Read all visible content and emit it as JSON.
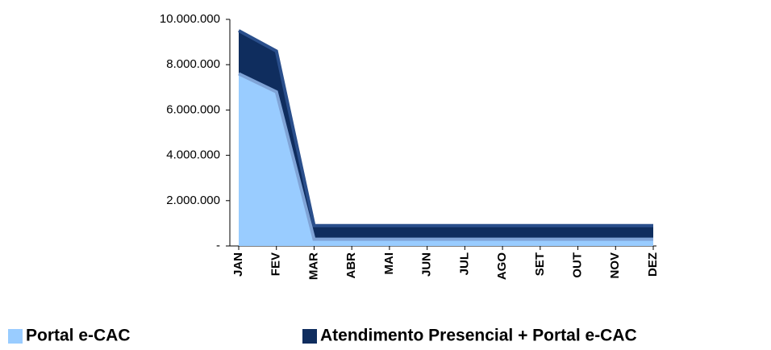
{
  "chart_data": {
    "type": "area",
    "categories": [
      "JAN",
      "FEV",
      "MAR",
      "ABR",
      "MAI",
      "JUN",
      "JUL",
      "AGO",
      "SET",
      "OUT",
      "NOV",
      "DEZ"
    ],
    "series": [
      {
        "name": "Atendimento Presencial + Portal e-CAC",
        "color": "#0f2d5e",
        "values": [
          9500000,
          8600000,
          900000,
          900000,
          900000,
          900000,
          900000,
          900000,
          900000,
          900000,
          900000,
          900000
        ]
      },
      {
        "name": "Portal e-CAC",
        "color": "#99ccff",
        "values": [
          7600000,
          6800000,
          300000,
          300000,
          300000,
          300000,
          300000,
          300000,
          300000,
          300000,
          300000,
          300000
        ]
      }
    ],
    "ylim": [
      0,
      10000000
    ],
    "yticks": [
      {
        "value": 0,
        "label": "-"
      },
      {
        "value": 2000000,
        "label": "2.000.000"
      },
      {
        "value": 4000000,
        "label": "4.000.000"
      },
      {
        "value": 6000000,
        "label": "6.000.000"
      },
      {
        "value": 8000000,
        "label": "8.000.000"
      },
      {
        "value": 10000000,
        "label": "10.000.000"
      }
    ],
    "legend": "bottom"
  }
}
